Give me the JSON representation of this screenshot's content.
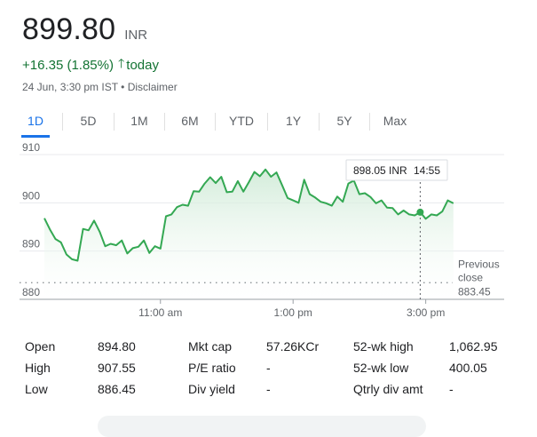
{
  "quote": {
    "price": "899.80",
    "currency": "INR",
    "change": "+16.35 (1.85%)",
    "change_arrow": "up-arrow-icon",
    "change_suffix": "today",
    "timestamp": "24 Jun, 3:30 pm IST",
    "separator": " • ",
    "disclaimer": "Disclaimer"
  },
  "tabs": [
    {
      "label": "1D",
      "active": true
    },
    {
      "label": "5D"
    },
    {
      "label": "1M"
    },
    {
      "label": "6M"
    },
    {
      "label": "YTD"
    },
    {
      "label": "1Y"
    },
    {
      "label": "5Y"
    },
    {
      "label": "Max"
    }
  ],
  "colors": {
    "line": "#34a853",
    "fill": "#e6f4ea",
    "positive_text": "#137333",
    "accent": "#1a73e8"
  },
  "chart_data": {
    "type": "line",
    "x_unit": "time of day",
    "x_range": [
      "09:15",
      "15:30"
    ],
    "y_range": [
      880,
      912
    ],
    "y_ticks": [
      880,
      890,
      900,
      910
    ],
    "x_ticks": [
      {
        "t": "11:00",
        "label": "11:00 am"
      },
      {
        "t": "13:00",
        "label": "1:00 pm"
      },
      {
        "t": "15:00",
        "label": "3:00 pm"
      }
    ],
    "previous_close": {
      "label_line1": "Previous",
      "label_line2": "close",
      "value": "883.45",
      "y": 883.45
    },
    "tooltip": {
      "price": "898.05 INR",
      "time": "14:55",
      "t": "14:55",
      "y": 898.05
    },
    "series": {
      "t": [
        "09:15",
        "09:20",
        "09:25",
        "09:30",
        "09:35",
        "09:40",
        "09:45",
        "09:50",
        "09:55",
        "10:00",
        "10:05",
        "10:10",
        "10:15",
        "10:20",
        "10:25",
        "10:30",
        "10:35",
        "10:40",
        "10:45",
        "10:50",
        "10:55",
        "11:00",
        "11:05",
        "11:10",
        "11:15",
        "11:20",
        "11:25",
        "11:30",
        "11:35",
        "11:40",
        "11:45",
        "11:50",
        "11:55",
        "12:00",
        "12:05",
        "12:10",
        "12:15",
        "12:20",
        "12:25",
        "12:30",
        "12:35",
        "12:40",
        "12:45",
        "12:50",
        "12:55",
        "13:00",
        "13:05",
        "13:10",
        "13:15",
        "13:20",
        "13:25",
        "13:30",
        "13:35",
        "13:40",
        "13:45",
        "13:50",
        "13:55",
        "14:00",
        "14:05",
        "14:10",
        "14:15",
        "14:20",
        "14:25",
        "14:30",
        "14:35",
        "14:40",
        "14:45",
        "14:50",
        "14:55",
        "15:00",
        "15:05",
        "15:10",
        "15:15",
        "15:20",
        "15:25"
      ],
      "y": [
        896.8,
        894.5,
        892.5,
        891.8,
        889.3,
        888.3,
        888.0,
        894.6,
        894.3,
        896.3,
        894.0,
        891.0,
        891.5,
        891.2,
        892.2,
        889.5,
        890.6,
        890.9,
        892.2,
        889.6,
        891.0,
        890.5,
        897.2,
        897.6,
        899.1,
        899.6,
        899.4,
        902.4,
        902.3,
        904.0,
        905.3,
        904.1,
        905.4,
        902.2,
        902.3,
        904.5,
        902.3,
        904.3,
        906.4,
        905.5,
        906.9,
        905.4,
        906.3,
        903.7,
        901.0,
        900.5,
        900.0,
        904.8,
        901.8,
        901.1,
        900.2,
        899.9,
        899.4,
        901.3,
        900.2,
        904.0,
        904.6,
        901.8,
        902.0,
        901.2,
        899.9,
        900.5,
        899.0,
        898.9,
        897.6,
        898.4,
        897.6,
        897.4,
        898.05,
        896.7,
        897.6,
        897.4,
        898.2,
        900.5,
        899.9
      ]
    }
  },
  "stats": [
    {
      "label": "Open",
      "value": "894.80"
    },
    {
      "label": "High",
      "value": "907.55"
    },
    {
      "label": "Low",
      "value": "886.45"
    },
    {
      "label": "Mkt cap",
      "value": "57.26KCr"
    },
    {
      "label": "P/E ratio",
      "value": "-"
    },
    {
      "label": "Div yield",
      "value": "-"
    },
    {
      "label": "52-wk high",
      "value": "1,062.95"
    },
    {
      "label": "52-wk low",
      "value": "400.05"
    },
    {
      "label": "Qtrly div amt",
      "value": "-"
    }
  ]
}
